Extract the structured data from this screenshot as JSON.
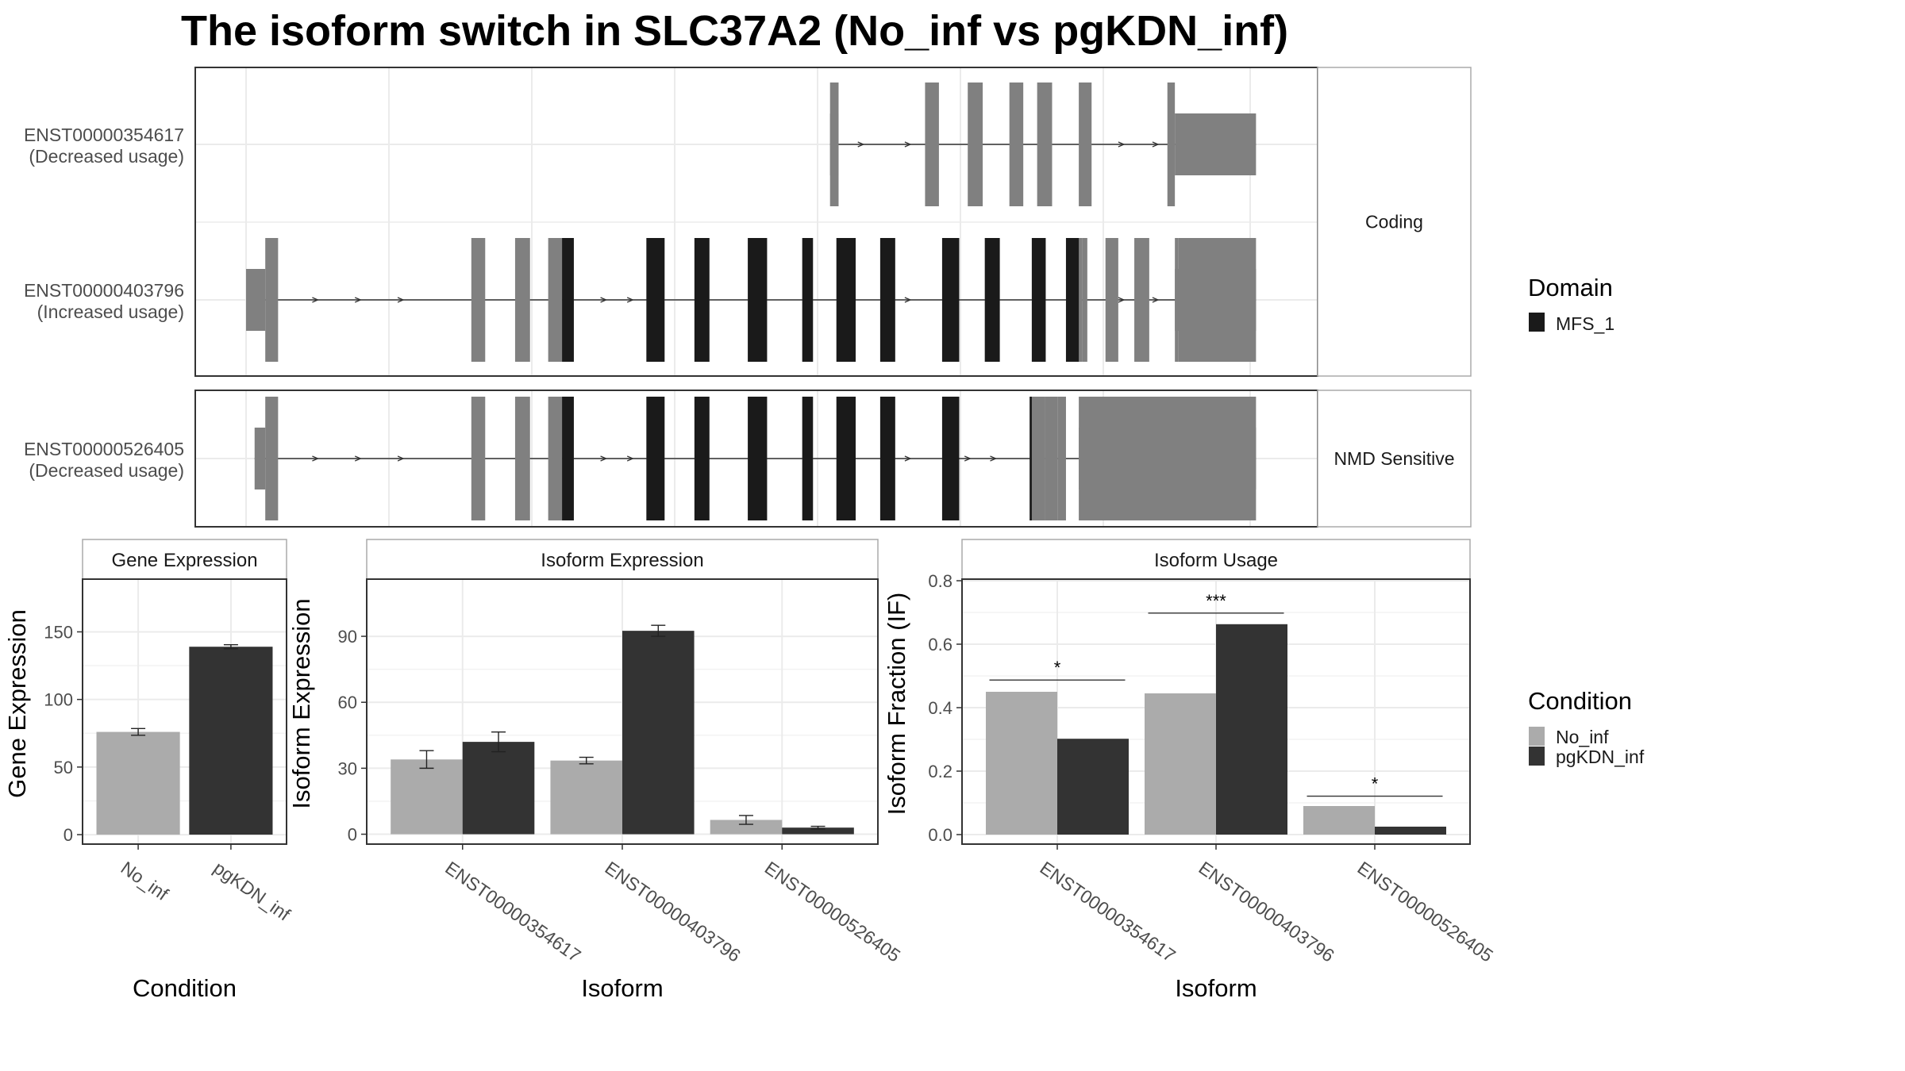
{
  "title": "The isoform switch in SLC37A2 (No_inf vs pgKDN_inf)",
  "colors": {
    "no_inf": "#ababab",
    "pgkdn_inf": "#333333",
    "exon": "#808080",
    "domain": "#1a1a1a",
    "panel_border": "#333333",
    "strip_border": "#aaaaaa",
    "grid": "#ebebeb"
  },
  "transcripts": {
    "genomic_range": [
      0,
      1000
    ],
    "groups": [
      {
        "label": "Coding",
        "transcripts": [
          {
            "id": "ENST00000354617",
            "usage": "(Decreased usage)",
            "utr": [
              [
                547,
                555
              ],
              [
                870,
                946
              ]
            ],
            "exons": [
              [
                547,
                555
              ],
              [
                636,
                649
              ],
              [
                676,
                690
              ],
              [
                715,
                728
              ],
              [
                741,
                755
              ],
              [
                780,
                792
              ],
              [
                863,
                870
              ]
            ],
            "domains": [],
            "arrows": [
              576,
              620,
              820,
              852
            ]
          },
          {
            "id": "ENST00000403796",
            "usage": "(Increased usage)",
            "utr": [
              [
                0,
                18
              ],
              [
                870,
                946
              ]
            ],
            "exons": [
              [
                18,
                30
              ],
              [
                211,
                224
              ],
              [
                252,
                266
              ],
              [
                283,
                296
              ],
              [
                296,
                307
              ],
              [
                375,
                392
              ],
              [
                420,
                434
              ],
              [
                470,
                488
              ],
              [
                521,
                531
              ],
              [
                553,
                571
              ],
              [
                594,
                608
              ],
              [
                652,
                668
              ],
              [
                692,
                706
              ],
              [
                736,
                749
              ],
              [
                768,
                783
              ],
              [
                783,
                788
              ],
              [
                805,
                817
              ],
              [
                832,
                846
              ],
              [
                870,
                873
              ],
              [
                873,
                946
              ]
            ],
            "domains": [
              [
                296,
                307
              ],
              [
                375,
                392
              ],
              [
                420,
                434
              ],
              [
                470,
                488
              ],
              [
                521,
                531
              ],
              [
                553,
                571
              ],
              [
                594,
                608
              ],
              [
                652,
                668
              ],
              [
                692,
                706
              ],
              [
                736,
                749
              ],
              [
                768,
                780
              ]
            ],
            "arrows": [
              65,
              105,
              145,
              335,
              360,
              602,
              620,
              820,
              852
            ]
          }
        ]
      },
      {
        "label": "NMD Sensitive",
        "transcripts": [
          {
            "id": "ENST00000526405",
            "usage": "(Decreased usage)",
            "utr": [
              [
                8,
                18
              ],
              [
                780,
                946
              ]
            ],
            "exons": [
              [
                18,
                30
              ],
              [
                211,
                224
              ],
              [
                252,
                266
              ],
              [
                283,
                296
              ],
              [
                296,
                307
              ],
              [
                375,
                392
              ],
              [
                420,
                434
              ],
              [
                470,
                488
              ],
              [
                521,
                531
              ],
              [
                553,
                571
              ],
              [
                594,
                608
              ],
              [
                652,
                668
              ],
              [
                734,
                736
              ],
              [
                736,
                748
              ],
              [
                748,
                760
              ],
              [
                760,
                768
              ],
              [
                780,
                946
              ]
            ],
            "domains": [
              [
                296,
                307
              ],
              [
                375,
                392
              ],
              [
                420,
                434
              ],
              [
                470,
                488
              ],
              [
                521,
                531
              ],
              [
                553,
                571
              ],
              [
                594,
                608
              ],
              [
                652,
                668
              ],
              [
                734,
                736
              ]
            ],
            "arrows": [
              65,
              105,
              145,
              335,
              360,
              602,
              620,
              676,
              700
            ]
          }
        ]
      }
    ]
  },
  "legend_domain": {
    "title": "Domain",
    "items": [
      {
        "label": "MFS_1",
        "color": "#1a1a1a"
      }
    ]
  },
  "legend_condition": {
    "title": "Condition",
    "items": [
      {
        "label": "No_inf",
        "color": "#ababab"
      },
      {
        "label": "pgKDN_inf",
        "color": "#333333"
      }
    ]
  },
  "chart_data": [
    {
      "type": "bar",
      "title": "Gene Expression",
      "xlabel": "Condition",
      "ylabel": "Gene Expression",
      "categories": [
        "No_inf",
        "pgKDN_inf"
      ],
      "values": [
        76,
        139
      ],
      "errors": [
        2.5,
        1.5
      ],
      "ylim": [
        -7,
        189
      ],
      "yticks": [
        0,
        50,
        100,
        150
      ]
    },
    {
      "type": "bar",
      "title": "Isoform Expression",
      "xlabel": "Isoform",
      "ylabel": "Isoform Expression",
      "categories": [
        "ENST00000354617",
        "ENST00000403796",
        "ENST00000526405"
      ],
      "series": [
        {
          "name": "No_inf",
          "values": [
            34,
            33.5,
            6.5
          ],
          "errors": [
            4,
            1.5,
            2
          ]
        },
        {
          "name": "pgKDN_inf",
          "values": [
            42,
            92.5,
            3
          ],
          "errors": [
            4.5,
            2.5,
            0.6
          ]
        }
      ],
      "ylim": [
        -4.5,
        116
      ],
      "yticks": [
        0,
        30,
        60,
        90
      ]
    },
    {
      "type": "bar",
      "title": "Isoform Usage",
      "xlabel": "Isoform",
      "ylabel": "Isoform Fraction (IF)",
      "categories": [
        "ENST00000354617",
        "ENST00000403796",
        "ENST00000526405"
      ],
      "series": [
        {
          "name": "No_inf",
          "values": [
            0.45,
            0.445,
            0.09
          ]
        },
        {
          "name": "pgKDN_inf",
          "values": [
            0.302,
            0.663,
            0.025
          ]
        }
      ],
      "significance": [
        "*",
        "***",
        "*"
      ],
      "sig_levels": [
        0.487,
        0.698,
        0.121
      ],
      "ylim": [
        -0.03,
        0.805
      ],
      "yticks": [
        0.0,
        0.2,
        0.4,
        0.6,
        0.8
      ]
    }
  ]
}
